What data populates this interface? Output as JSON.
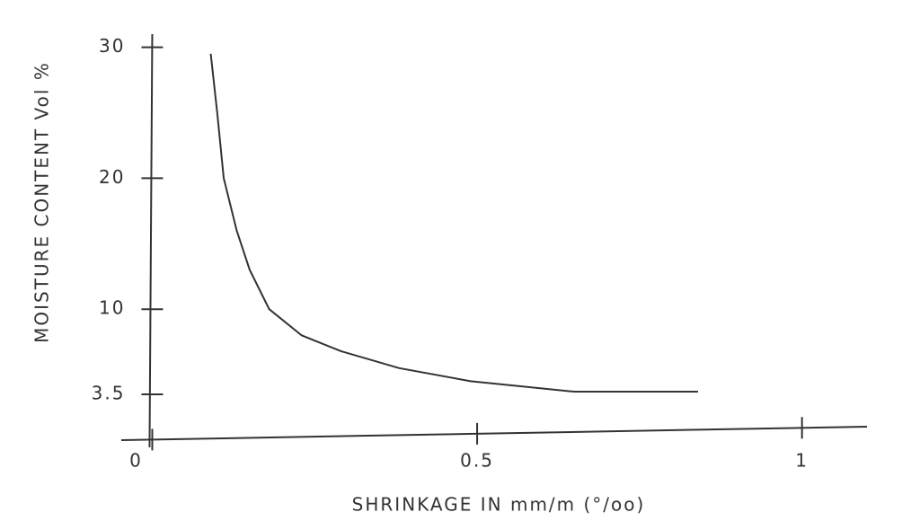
{
  "chart_data": {
    "type": "line",
    "x_label": "SHRINKAGE IN mm/m (°/oo)",
    "y_label": "MOISTURE CONTENT Vol %",
    "x": [
      0.09,
      0.1,
      0.11,
      0.13,
      0.15,
      0.18,
      0.23,
      0.29,
      0.38,
      0.49,
      0.65,
      0.84
    ],
    "values": [
      29.5,
      25,
      20,
      16,
      13,
      10,
      8,
      6.8,
      5.5,
      4.5,
      3.7,
      3.7
    ],
    "color": "#333333",
    "xlim": [
      -0.02,
      1.1
    ],
    "xticks": [
      0,
      0.5,
      1
    ],
    "ylim": [
      0,
      31
    ],
    "yticks": [
      3.5,
      10,
      20,
      30
    ]
  }
}
